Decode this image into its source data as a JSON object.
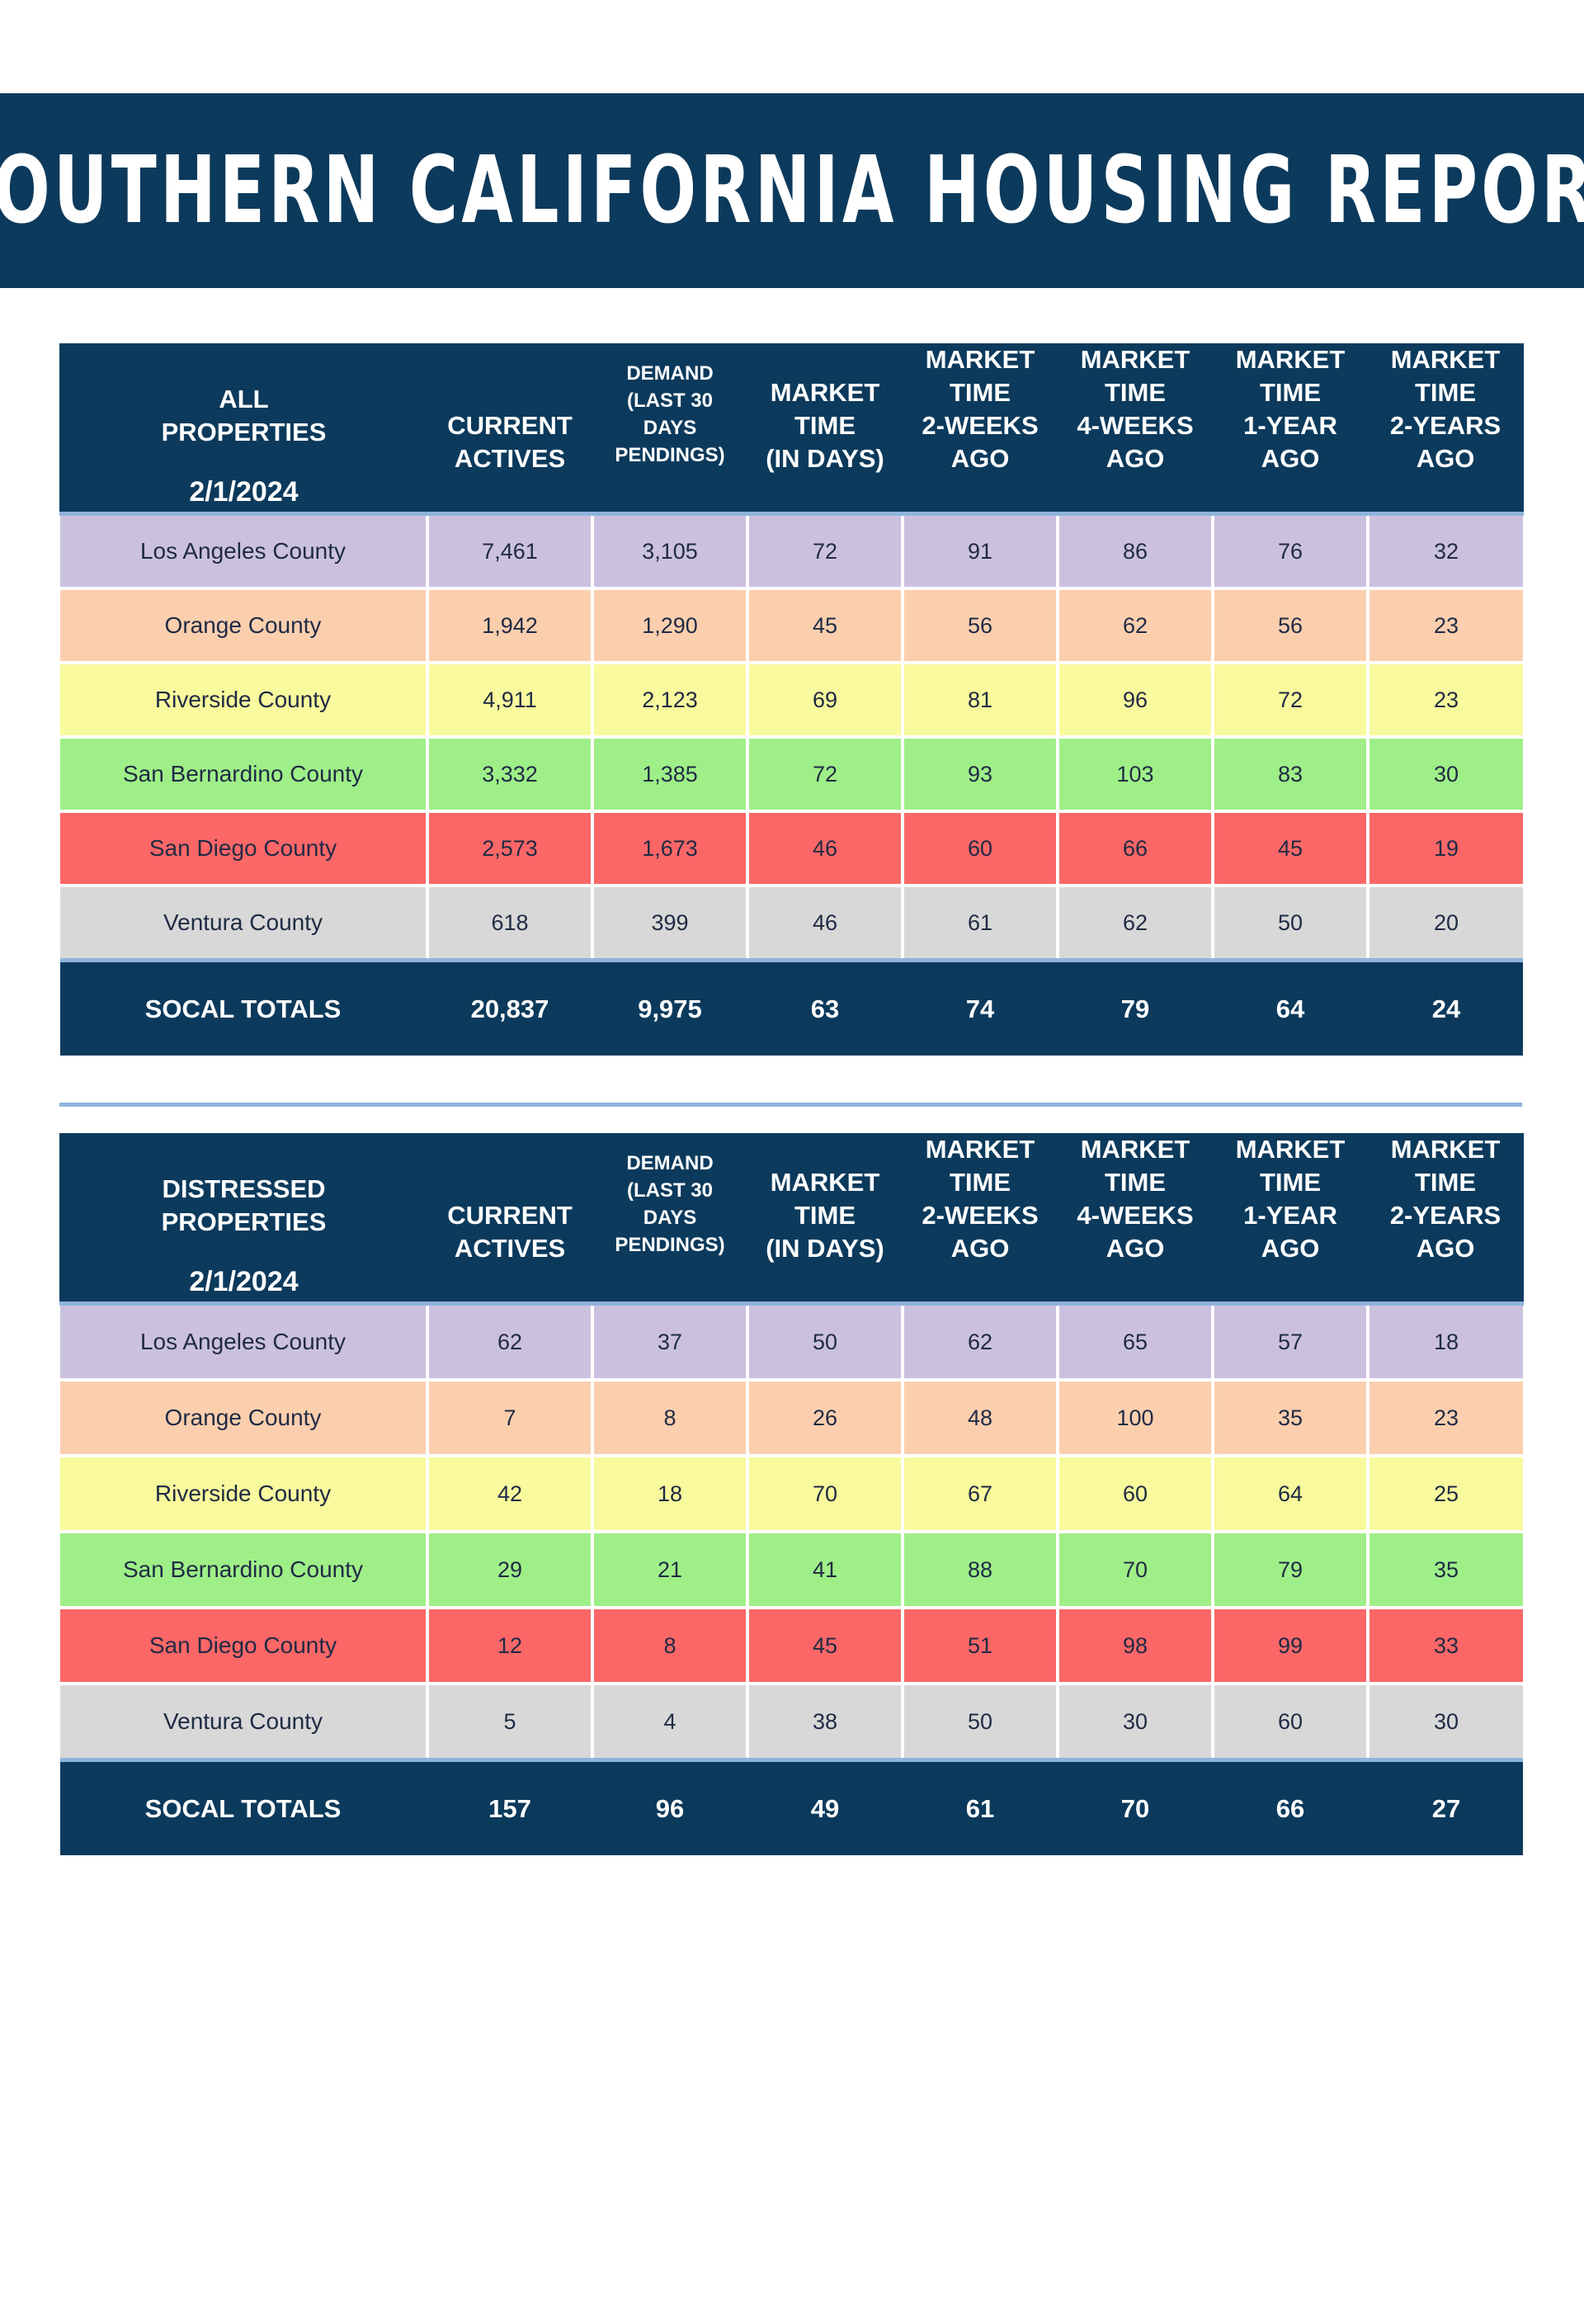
{
  "title": "SOUTHERN CALIFORNIA HOUSING REPORT",
  "colors": {
    "navy": "#0c3a5c",
    "los_angeles": "#cbc1df",
    "orange": "#fbcfae",
    "riverside": "#f9f99d",
    "san_bernardino": "#9fef88",
    "san_diego": "#fb6767",
    "ventura": "#d8d8d8"
  },
  "headers": {
    "current_actives": [
      "CURRENT",
      "ACTIVES"
    ],
    "demand": [
      "DEMAND",
      "(LAST 30",
      "DAYS",
      "PENDINGS)"
    ],
    "market_time": [
      "MARKET",
      "TIME",
      "(IN DAYS)"
    ],
    "two_weeks": [
      "MARKET",
      "TIME",
      "2-WEEKS",
      "AGO"
    ],
    "four_weeks": [
      "MARKET",
      "TIME",
      "4-WEEKS",
      "AGO"
    ],
    "one_year": [
      "MARKET",
      "TIME",
      "1-YEAR",
      "AGO"
    ],
    "two_years": [
      "MARKET",
      "TIME",
      "2-YEARS",
      "AGO"
    ]
  },
  "tables": [
    {
      "label": [
        "ALL",
        "PROPERTIES"
      ],
      "date": "2/1/2024",
      "rows": [
        [
          "Los Angeles County",
          "7,461",
          "3,105",
          "72",
          "91",
          "86",
          "76",
          "32"
        ],
        [
          "Orange County",
          "1,942",
          "1,290",
          "45",
          "56",
          "62",
          "56",
          "23"
        ],
        [
          "Riverside County",
          "4,911",
          "2,123",
          "69",
          "81",
          "96",
          "72",
          "23"
        ],
        [
          "San Bernardino County",
          "3,332",
          "1,385",
          "72",
          "93",
          "103",
          "83",
          "30"
        ],
        [
          "San Diego County",
          "2,573",
          "1,673",
          "46",
          "60",
          "66",
          "45",
          "19"
        ],
        [
          "Ventura County",
          "618",
          "399",
          "46",
          "61",
          "62",
          "50",
          "20"
        ]
      ],
      "totals": [
        "SOCAL TOTALS",
        "20,837",
        "9,975",
        "63",
        "74",
        "79",
        "64",
        "24"
      ]
    },
    {
      "label": [
        "DISTRESSED",
        "PROPERTIES"
      ],
      "date": "2/1/2024",
      "rows": [
        [
          "Los Angeles County",
          "62",
          "37",
          "50",
          "62",
          "65",
          "57",
          "18"
        ],
        [
          "Orange County",
          "7",
          "8",
          "26",
          "48",
          "100",
          "35",
          "23"
        ],
        [
          "Riverside County",
          "42",
          "18",
          "70",
          "67",
          "60",
          "64",
          "25"
        ],
        [
          "San Bernardino County",
          "29",
          "21",
          "41",
          "88",
          "70",
          "79",
          "35"
        ],
        [
          "San Diego County",
          "12",
          "8",
          "45",
          "51",
          "98",
          "99",
          "33"
        ],
        [
          "Ventura County",
          "5",
          "4",
          "38",
          "50",
          "30",
          "60",
          "30"
        ]
      ],
      "totals": [
        "SOCAL TOTALS",
        "157",
        "96",
        "49",
        "61",
        "70",
        "66",
        "27"
      ]
    }
  ]
}
